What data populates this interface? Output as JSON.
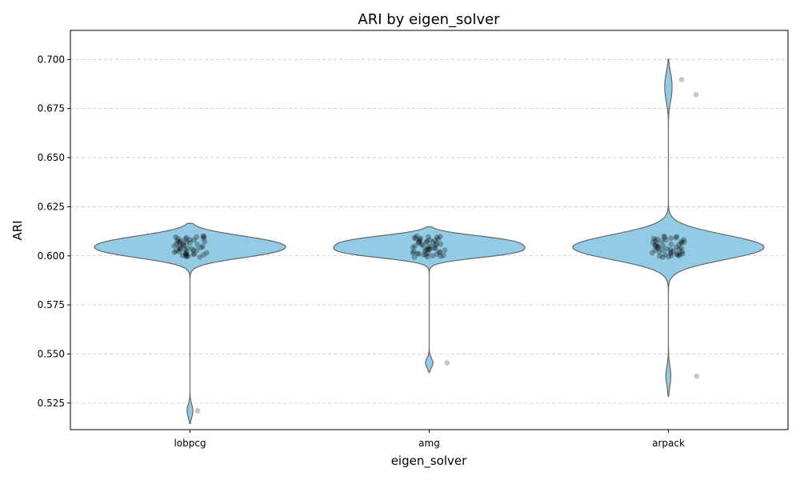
{
  "chart_data": {
    "type": "violin",
    "title": "ARI by eigen_solver",
    "xlabel": "eigen_solver",
    "ylabel": "ARI",
    "categories": [
      "lobpcg",
      "amg",
      "arpack"
    ],
    "ylim": [
      0.5115,
      0.7148
    ],
    "yticks": [
      0.525,
      0.55,
      0.575,
      0.6,
      0.625,
      0.65,
      0.675,
      0.7
    ],
    "ytick_labels": [
      "0.525",
      "0.550",
      "0.575",
      "0.600",
      "0.625",
      "0.650",
      "0.675",
      "0.700"
    ],
    "grid": "y-dashed",
    "colors": {
      "violin_fill": "#92cbe3",
      "violin_edge": "#666666",
      "dot": "#000000",
      "outlier_dot": "#999999"
    },
    "series": [
      {
        "category": "lobpcg",
        "min": 0.5211,
        "max": 0.61,
        "values": [
          0.61,
          0.6098,
          0.6095,
          0.6092,
          0.609,
          0.6088,
          0.6085,
          0.6082,
          0.608,
          0.6078,
          0.6075,
          0.6072,
          0.607,
          0.6068,
          0.6065,
          0.6062,
          0.606,
          0.6058,
          0.6055,
          0.6052,
          0.605,
          0.6048,
          0.6045,
          0.6042,
          0.604,
          0.6038,
          0.6035,
          0.6032,
          0.603,
          0.6028,
          0.6025,
          0.6022,
          0.602,
          0.6018,
          0.6015,
          0.6012,
          0.601,
          0.6008,
          0.6005,
          0.6002,
          0.6,
          0.5998,
          0.5995,
          0.5993,
          0.6006,
          0.6011,
          0.6033,
          0.6071,
          0.6096,
          0.5211
        ]
      },
      {
        "category": "amg",
        "min": 0.5455,
        "max": 0.61,
        "values": [
          0.61,
          0.6098,
          0.6095,
          0.6092,
          0.609,
          0.6088,
          0.6085,
          0.6082,
          0.608,
          0.6078,
          0.6075,
          0.6072,
          0.607,
          0.6068,
          0.6065,
          0.6062,
          0.606,
          0.6058,
          0.6055,
          0.6052,
          0.605,
          0.6048,
          0.6045,
          0.6042,
          0.604,
          0.6038,
          0.6035,
          0.6032,
          0.603,
          0.6028,
          0.6025,
          0.6022,
          0.602,
          0.6018,
          0.6015,
          0.6012,
          0.601,
          0.6008,
          0.6005,
          0.6002,
          0.6,
          0.5998,
          0.5995,
          0.5993,
          0.6006,
          0.6011,
          0.6033,
          0.6071,
          0.6096,
          0.5455
        ]
      },
      {
        "category": "arpack",
        "min": 0.5387,
        "max": 0.69,
        "values": [
          0.61,
          0.6098,
          0.6095,
          0.6092,
          0.609,
          0.6088,
          0.6085,
          0.6082,
          0.608,
          0.6078,
          0.6075,
          0.6072,
          0.607,
          0.6068,
          0.6065,
          0.6062,
          0.606,
          0.6058,
          0.6055,
          0.6052,
          0.605,
          0.6048,
          0.6045,
          0.6042,
          0.604,
          0.6038,
          0.6035,
          0.6032,
          0.603,
          0.6028,
          0.6025,
          0.6022,
          0.602,
          0.6018,
          0.6015,
          0.6012,
          0.601,
          0.6008,
          0.6005,
          0.6002,
          0.6,
          0.5998,
          0.5995,
          0.5993,
          0.6006,
          0.6011,
          0.6033,
          0.6821,
          0.6898,
          0.5387
        ]
      }
    ]
  }
}
